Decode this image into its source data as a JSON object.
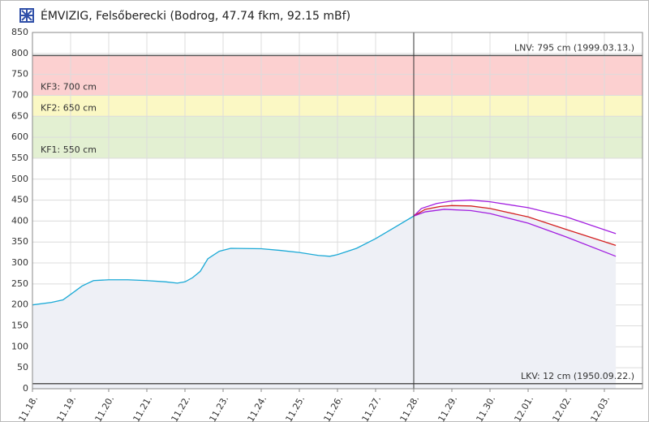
{
  "chart_data": {
    "type": "line",
    "title": "ÉMVIZIG, Felsőberecki (Bodrog, 47.74 fkm, 92.15 mBf)",
    "xlim": [
      0,
      16
    ],
    "ylim": [
      0,
      850
    ],
    "yticks": [
      0,
      50,
      100,
      150,
      200,
      250,
      300,
      350,
      400,
      450,
      500,
      550,
      600,
      650,
      700,
      750,
      800,
      850
    ],
    "xticks": [
      {
        "value": 0,
        "label": "11.18."
      },
      {
        "value": 1,
        "label": "11.19."
      },
      {
        "value": 2,
        "label": "11.20."
      },
      {
        "value": 3,
        "label": "11.21."
      },
      {
        "value": 4,
        "label": "11.22."
      },
      {
        "value": 5,
        "label": "11.23."
      },
      {
        "value": 6,
        "label": "11.24."
      },
      {
        "value": 7,
        "label": "11.25."
      },
      {
        "value": 8,
        "label": "11.26."
      },
      {
        "value": 9,
        "label": "11.27."
      },
      {
        "value": 10,
        "label": "11.28."
      },
      {
        "value": 11,
        "label": "11.29."
      },
      {
        "value": 12,
        "label": "11.30."
      },
      {
        "value": 13,
        "label": "12.01."
      },
      {
        "value": 14,
        "label": "12.02."
      },
      {
        "value": 15,
        "label": "12.03."
      }
    ],
    "grid": true,
    "now_x": 10,
    "lnv": {
      "label": "LNV: 795 cm (1999.03.13.)",
      "value": 795
    },
    "lkv": {
      "label": "LKV: 12 cm (1950.09.22.)",
      "value": 12
    },
    "levels": [
      {
        "label": "KF1: 550 cm",
        "value": 550,
        "color": "#e3f0d2"
      },
      {
        "label": "KF2: 650 cm",
        "value": 650,
        "color": "#fbf8c4"
      },
      {
        "label": "KF3: 700 cm",
        "value": 700,
        "color": "#fcd0d0"
      }
    ],
    "series": [
      {
        "color": "#1aa9d6",
        "fill": "#eef0f6",
        "x": [
          0,
          0.5,
          0.8,
          1,
          1.3,
          1.6,
          2,
          2.5,
          3,
          3.5,
          3.8,
          4,
          4.2,
          4.4,
          4.6,
          4.9,
          5.2,
          6,
          6.5,
          7,
          7.5,
          7.8,
          8,
          8.5,
          9,
          9.5,
          10
        ],
        "values": [
          200,
          206,
          212,
          225,
          245,
          258,
          260,
          260,
          258,
          255,
          252,
          255,
          265,
          280,
          310,
          328,
          335,
          334,
          330,
          325,
          318,
          316,
          320,
          335,
          358,
          385,
          412
        ]
      },
      {
        "color": "#a21fe0",
        "x": [
          10,
          10.2,
          10.6,
          11,
          11.5,
          12,
          13,
          14,
          15.3
        ],
        "values": [
          412,
          430,
          442,
          448,
          450,
          446,
          432,
          410,
          370
        ]
      },
      {
        "color": "#d42020",
        "fill": "#eef0f6",
        "x": [
          10,
          10.3,
          10.7,
          11,
          11.5,
          12,
          13,
          14,
          15.3
        ],
        "values": [
          412,
          428,
          435,
          437,
          436,
          430,
          410,
          380,
          342
        ]
      },
      {
        "color": "#a21fe0",
        "x": [
          10,
          10.3,
          10.8,
          11.5,
          12,
          13,
          14,
          15.3
        ],
        "values": [
          412,
          422,
          428,
          425,
          418,
          395,
          362,
          316
        ]
      }
    ]
  }
}
